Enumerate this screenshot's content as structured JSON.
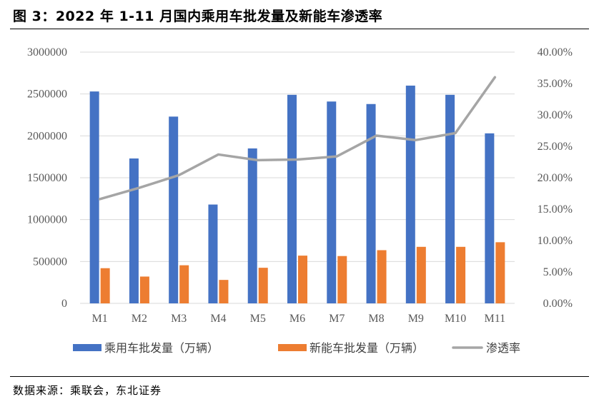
{
  "figure": {
    "title": "图 3：2022 年 1-11 月国内乘用车批发量及新能车渗透率",
    "source": "数据来源：乘联会，东北证券"
  },
  "colors": {
    "series1": "#4472C4",
    "series2": "#ED7D31",
    "series3": "#A5A5A5",
    "grid": "#D9D9D9"
  },
  "chart_data": {
    "type": "bar",
    "categories": [
      "M1",
      "M2",
      "M3",
      "M4",
      "M5",
      "M6",
      "M7",
      "M8",
      "M9",
      "M10",
      "M11"
    ],
    "series": [
      {
        "name": "乘用车批发量（万辆）",
        "type": "bar",
        "axis": "left",
        "values": [
          2530000,
          1730000,
          2230000,
          1180000,
          1850000,
          2490000,
          2410000,
          2380000,
          2600000,
          2490000,
          2030000
        ]
      },
      {
        "name": "新能车批发量（万辆）",
        "type": "bar",
        "axis": "left",
        "values": [
          420000,
          320000,
          455000,
          280000,
          425000,
          570000,
          565000,
          635000,
          675000,
          675000,
          730000
        ]
      },
      {
        "name": "渗透率",
        "type": "line",
        "axis": "right",
        "values": [
          0.166,
          0.184,
          0.204,
          0.237,
          0.228,
          0.229,
          0.234,
          0.267,
          0.26,
          0.271,
          0.36
        ]
      }
    ],
    "y_left": {
      "min": 0,
      "max": 3000000,
      "ticks": [
        "0",
        "500000",
        "1000000",
        "1500000",
        "2000000",
        "2500000",
        "3000000"
      ]
    },
    "y_right": {
      "min": 0,
      "max": 0.4,
      "ticks": [
        "0.00%",
        "5.00%",
        "10.00%",
        "15.00%",
        "20.00%",
        "25.00%",
        "30.00%",
        "35.00%",
        "40.00%"
      ]
    },
    "grid": true,
    "legend_position": "bottom"
  }
}
